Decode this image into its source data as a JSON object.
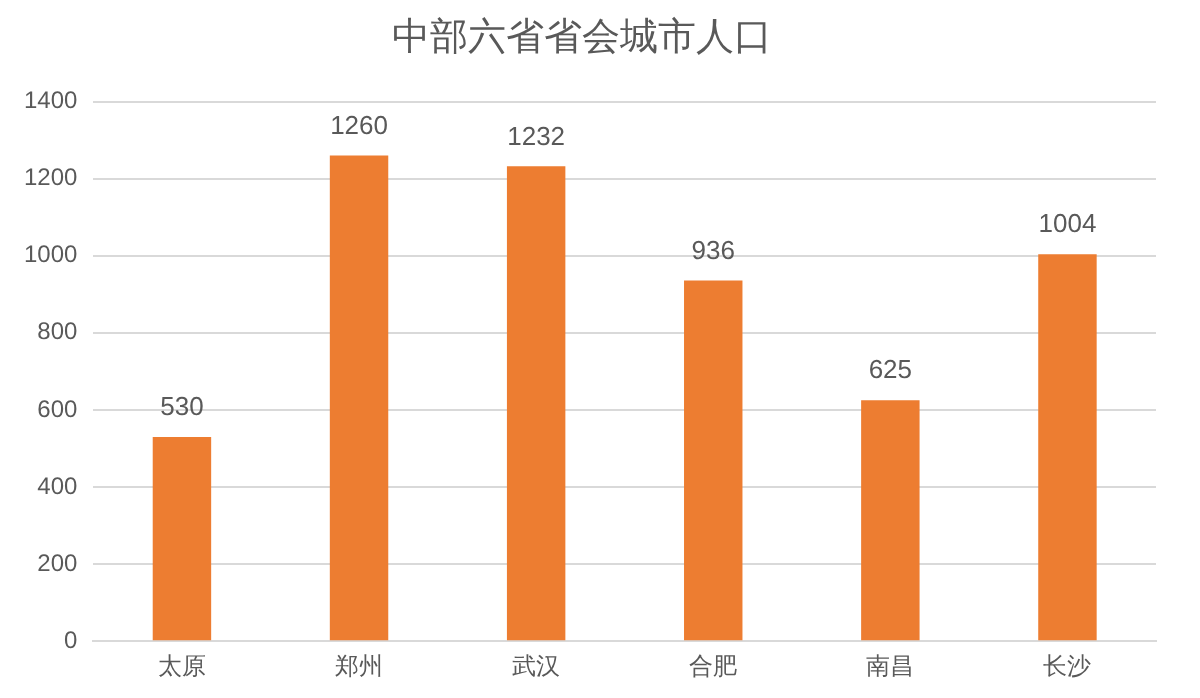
{
  "chart_data": {
    "type": "bar",
    "title": "中部六省省会城市人口",
    "categories": [
      "太原",
      "郑州",
      "武汉",
      "合肥",
      "南昌",
      "长沙"
    ],
    "values": [
      530,
      1260,
      1232,
      936,
      625,
      1004
    ],
    "color": "#ed7d31",
    "ylim": [
      0,
      1400
    ],
    "yticks": [
      0,
      200,
      400,
      600,
      800,
      1000,
      1200,
      1400
    ],
    "grid": "y",
    "data_labels": true
  }
}
